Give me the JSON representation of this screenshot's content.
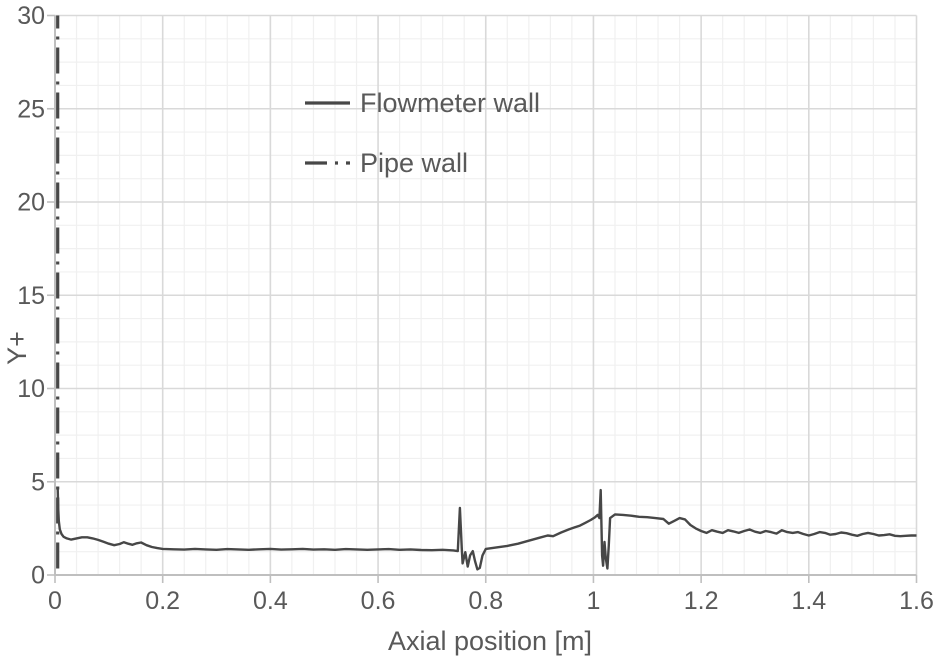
{
  "chart": {
    "background": "#ffffff",
    "text_color": "#595959",
    "axis_line_color": "#bfbfbf",
    "major_grid_color": "#d9d9d9",
    "minor_grid_color": "#f0f0f0",
    "series_color": "#474747",
    "x_axis_title": "Axial position [m]",
    "y_axis_title": "Y+",
    "x_tick_labels": [
      "0",
      "0.2",
      "0.4",
      "0.6",
      "0.8",
      "1",
      "1.2",
      "1.4",
      "1.6"
    ],
    "y_tick_labels": [
      "0",
      "5",
      "10",
      "15",
      "20",
      "25",
      "30"
    ],
    "legend": [
      {
        "label": "Flowmeter wall",
        "style": "solid"
      },
      {
        "label": "Pipe wall",
        "style": "dash-dot"
      }
    ]
  },
  "chart_data": {
    "type": "line",
    "title": "",
    "xlabel": "Axial position [m]",
    "ylabel": "Y+",
    "xlim": [
      0,
      1.6
    ],
    "ylim": [
      0,
      30
    ],
    "x_major_step": 0.2,
    "x_minor_step": 0.04,
    "y_major_step": 5,
    "y_minor_step": 1.25,
    "grid": "on",
    "legend_position": "inside-top-left",
    "series": [
      {
        "name": "Flowmeter wall",
        "style": "solid",
        "points": [
          [
            0.005,
            4.65
          ],
          [
            0.006,
            3.6
          ],
          [
            0.007,
            2.9
          ],
          [
            0.009,
            2.45
          ],
          [
            0.012,
            2.2
          ],
          [
            0.016,
            2.05
          ],
          [
            0.022,
            1.96
          ],
          [
            0.03,
            1.9
          ],
          [
            0.04,
            1.96
          ],
          [
            0.05,
            2.02
          ],
          [
            0.06,
            2.02
          ],
          [
            0.07,
            1.96
          ],
          [
            0.08,
            1.88
          ],
          [
            0.09,
            1.78
          ],
          [
            0.1,
            1.68
          ],
          [
            0.11,
            1.6
          ],
          [
            0.12,
            1.66
          ],
          [
            0.128,
            1.76
          ],
          [
            0.136,
            1.68
          ],
          [
            0.144,
            1.62
          ],
          [
            0.152,
            1.7
          ],
          [
            0.16,
            1.74
          ],
          [
            0.17,
            1.6
          ],
          [
            0.18,
            1.5
          ],
          [
            0.19,
            1.44
          ],
          [
            0.2,
            1.4
          ],
          [
            0.22,
            1.38
          ],
          [
            0.24,
            1.36
          ],
          [
            0.26,
            1.4
          ],
          [
            0.28,
            1.37
          ],
          [
            0.3,
            1.35
          ],
          [
            0.32,
            1.39
          ],
          [
            0.34,
            1.37
          ],
          [
            0.36,
            1.35
          ],
          [
            0.38,
            1.38
          ],
          [
            0.4,
            1.4
          ],
          [
            0.42,
            1.36
          ],
          [
            0.44,
            1.38
          ],
          [
            0.46,
            1.4
          ],
          [
            0.48,
            1.36
          ],
          [
            0.5,
            1.38
          ],
          [
            0.52,
            1.35
          ],
          [
            0.54,
            1.39
          ],
          [
            0.56,
            1.37
          ],
          [
            0.58,
            1.35
          ],
          [
            0.6,
            1.37
          ],
          [
            0.62,
            1.39
          ],
          [
            0.64,
            1.35
          ],
          [
            0.66,
            1.37
          ],
          [
            0.68,
            1.34
          ],
          [
            0.7,
            1.33
          ],
          [
            0.72,
            1.35
          ],
          [
            0.74,
            1.32
          ],
          [
            0.748,
            1.28
          ],
          [
            0.752,
            3.6
          ],
          [
            0.7555,
            1.4
          ],
          [
            0.757,
            0.62
          ],
          [
            0.762,
            1.22
          ],
          [
            0.7665,
            0.45
          ],
          [
            0.771,
            1.05
          ],
          [
            0.776,
            1.28
          ],
          [
            0.78,
            0.75
          ],
          [
            0.7845,
            0.3
          ],
          [
            0.789,
            0.38
          ],
          [
            0.794,
            1.05
          ],
          [
            0.8,
            1.4
          ],
          [
            0.82,
            1.48
          ],
          [
            0.84,
            1.56
          ],
          [
            0.86,
            1.68
          ],
          [
            0.88,
            1.84
          ],
          [
            0.9,
            2.0
          ],
          [
            0.915,
            2.12
          ],
          [
            0.925,
            2.08
          ],
          [
            0.94,
            2.28
          ],
          [
            0.955,
            2.45
          ],
          [
            0.965,
            2.55
          ],
          [
            0.975,
            2.65
          ],
          [
            0.985,
            2.8
          ],
          [
            0.995,
            2.95
          ],
          [
            1.003,
            3.1
          ],
          [
            1.008,
            3.22
          ],
          [
            1.011,
            3.05
          ],
          [
            1.0135,
            4.55
          ],
          [
            1.016,
            1.05
          ],
          [
            1.018,
            0.5
          ],
          [
            1.0205,
            1.77
          ],
          [
            1.023,
            0.9
          ],
          [
            1.026,
            0.35
          ],
          [
            1.0285,
            1.6
          ],
          [
            1.031,
            3.05
          ],
          [
            1.04,
            3.25
          ],
          [
            1.055,
            3.22
          ],
          [
            1.07,
            3.18
          ],
          [
            1.085,
            3.12
          ],
          [
            1.1,
            3.1
          ],
          [
            1.115,
            3.05
          ],
          [
            1.13,
            3.0
          ],
          [
            1.14,
            2.75
          ],
          [
            1.15,
            2.9
          ],
          [
            1.16,
            3.05
          ],
          [
            1.17,
            2.98
          ],
          [
            1.18,
            2.68
          ],
          [
            1.19,
            2.5
          ],
          [
            1.2,
            2.36
          ],
          [
            1.21,
            2.26
          ],
          [
            1.22,
            2.4
          ],
          [
            1.23,
            2.32
          ],
          [
            1.24,
            2.26
          ],
          [
            1.25,
            2.4
          ],
          [
            1.26,
            2.34
          ],
          [
            1.27,
            2.26
          ],
          [
            1.28,
            2.36
          ],
          [
            1.29,
            2.44
          ],
          [
            1.3,
            2.32
          ],
          [
            1.31,
            2.26
          ],
          [
            1.32,
            2.36
          ],
          [
            1.33,
            2.3
          ],
          [
            1.34,
            2.22
          ],
          [
            1.35,
            2.4
          ],
          [
            1.36,
            2.3
          ],
          [
            1.37,
            2.26
          ],
          [
            1.38,
            2.3
          ],
          [
            1.39,
            2.2
          ],
          [
            1.4,
            2.12
          ],
          [
            1.41,
            2.2
          ],
          [
            1.42,
            2.3
          ],
          [
            1.43,
            2.26
          ],
          [
            1.44,
            2.16
          ],
          [
            1.45,
            2.2
          ],
          [
            1.46,
            2.28
          ],
          [
            1.47,
            2.24
          ],
          [
            1.48,
            2.16
          ],
          [
            1.49,
            2.1
          ],
          [
            1.5,
            2.2
          ],
          [
            1.51,
            2.26
          ],
          [
            1.52,
            2.2
          ],
          [
            1.53,
            2.12
          ],
          [
            1.54,
            2.14
          ],
          [
            1.55,
            2.18
          ],
          [
            1.56,
            2.1
          ],
          [
            1.57,
            2.08
          ],
          [
            1.58,
            2.1
          ],
          [
            1.59,
            2.12
          ],
          [
            1.6,
            2.12
          ]
        ]
      },
      {
        "name": "Pipe wall",
        "style": "dash-dot",
        "points": [
          [
            0.005,
            0.35
          ],
          [
            0.005,
            30
          ]
        ]
      }
    ]
  }
}
